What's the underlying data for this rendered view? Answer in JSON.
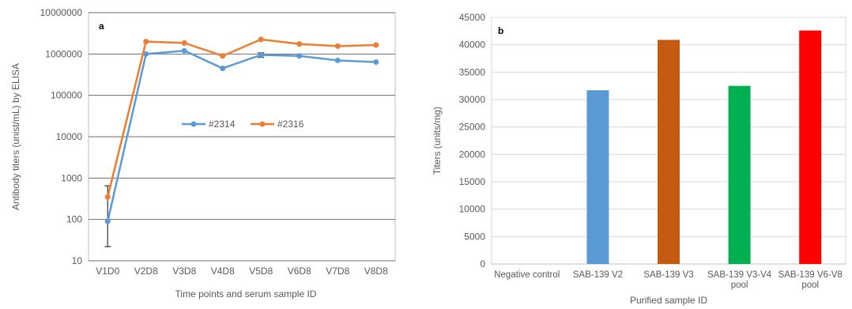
{
  "chart_data": [
    {
      "type": "line",
      "panel_label": "a",
      "title": "",
      "xlabel": "Time points and serum sample ID",
      "ylabel": "Antibody titers (unist/mL)  by ELISA",
      "yscale": "log",
      "ylim": [
        10,
        10000000
      ],
      "yticks": [
        "10",
        "100",
        "1000",
        "10000",
        "100000",
        "1000000",
        "10000000"
      ],
      "categories": [
        "V1D0",
        "V2D8",
        "V3D8",
        "V4D8",
        "V5D8",
        "V6D8",
        "V7D8",
        "V8D8"
      ],
      "grid": true,
      "legend_position": "center",
      "series": [
        {
          "name": "#2314",
          "color": "#5B9BD5",
          "values": [
            90,
            1000000,
            1200000,
            450000,
            950000,
            900000,
            700000,
            640000
          ],
          "error_bars": [
            [
              22,
              650
            ],
            null,
            null,
            null,
            [
              830000,
              1070000
            ],
            null,
            null,
            null
          ]
        },
        {
          "name": "#2316",
          "color": "#ED7D31",
          "values": [
            350,
            2000000,
            1850000,
            900000,
            2250000,
            1750000,
            1550000,
            1650000
          ]
        }
      ]
    },
    {
      "type": "bar",
      "panel_label": "b",
      "title": "",
      "xlabel": "Purified sample ID",
      "ylabel": "Titers (units/mg)",
      "ylim": [
        0,
        45000
      ],
      "yticks": [
        "0",
        "5000",
        "10000",
        "15000",
        "20000",
        "25000",
        "30000",
        "35000",
        "40000",
        "45000"
      ],
      "grid": true,
      "categories": [
        [
          "Negative control"
        ],
        [
          "SAB-139 V2"
        ],
        [
          "SAB-139 V3"
        ],
        [
          "SAB-139 V3-V4",
          "pool"
        ],
        [
          "SAB-139 V6-V8",
          "pool"
        ]
      ],
      "values": [
        0,
        31700,
        40900,
        32500,
        42600
      ],
      "colors": [
        "#5B9BD5",
        "#5B9BD5",
        "#C55A11",
        "#00B050",
        "#FF0000"
      ]
    }
  ]
}
